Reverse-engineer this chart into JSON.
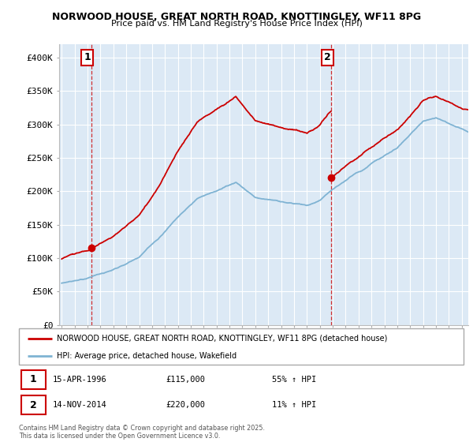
{
  "title1": "NORWOOD HOUSE, GREAT NORTH ROAD, KNOTTINGLEY, WF11 8PG",
  "title2": "Price paid vs. HM Land Registry's House Price Index (HPI)",
  "ylim": [
    0,
    420000
  ],
  "yticks": [
    0,
    50000,
    100000,
    150000,
    200000,
    250000,
    300000,
    350000,
    400000
  ],
  "ytick_labels": [
    "£0",
    "£50K",
    "£100K",
    "£150K",
    "£200K",
    "£250K",
    "£300K",
    "£350K",
    "£400K"
  ],
  "purchase1": {
    "date_num": 1996.29,
    "price": 115000,
    "label": "1"
  },
  "purchase2": {
    "date_num": 2014.87,
    "price": 220000,
    "label": "2"
  },
  "vline1_x": 1996.29,
  "vline2_x": 2014.87,
  "red_line_color": "#cc0000",
  "blue_line_color": "#7fb3d3",
  "bg_color": "#dce9f5",
  "grid_color": "#ffffff",
  "legend_label1": "NORWOOD HOUSE, GREAT NORTH ROAD, KNOTTINGLEY, WF11 8PG (detached house)",
  "legend_label2": "HPI: Average price, detached house, Wakefield",
  "footer": "Contains HM Land Registry data © Crown copyright and database right 2025.\nThis data is licensed under the Open Government Licence v3.0.",
  "xmin": 1993.8,
  "xmax": 2025.5,
  "ann1_date": "15-APR-1996",
  "ann1_price": "£115,000",
  "ann1_hpi": "55% ↑ HPI",
  "ann2_date": "14-NOV-2014",
  "ann2_price": "£220,000",
  "ann2_hpi": "11% ↑ HPI"
}
